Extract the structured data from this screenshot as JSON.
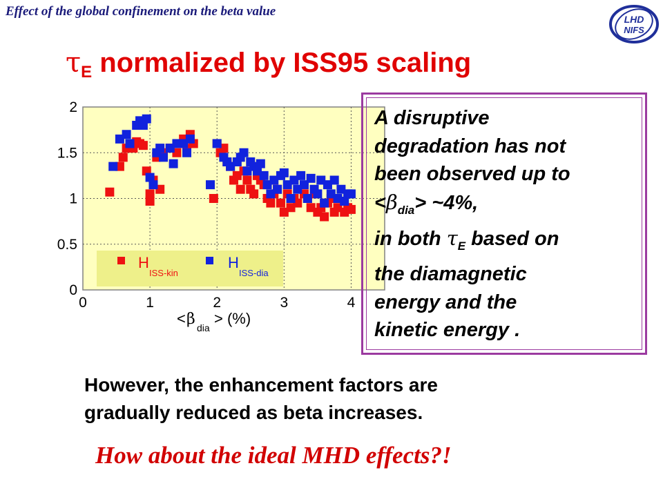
{
  "header": {
    "title": "Effect of the global confinement on the beta value"
  },
  "logo": {
    "text_top": "LHD",
    "text_bottom": "NIFS",
    "color": "#1f2f9a"
  },
  "slide_title": {
    "tau": "τ",
    "sub": "E",
    "rest": " normalized by ISS95 scaling"
  },
  "textbox": {
    "line1": "A disruptive",
    "line2": "degradation has not",
    "line3": "been observed up to",
    "l4_lt": "<",
    "l4_beta": "β",
    "l4_sub": "dia",
    "l4_rest": "> ~4%,",
    "l5_a": "in both ",
    "l5_tau": "τ",
    "l5_sub": "E",
    "l5_rest": " based on",
    "line6": "the diamagnetic",
    "line7": "energy and the",
    "line8": "kinetic energy ."
  },
  "body": {
    "line1": "However, the enhancement factors are",
    "line2": "gradually reduced as beta increases."
  },
  "question": "How about the ideal MHD effects?!",
  "colors": {
    "red": "#ee1111",
    "blue": "#1122dd",
    "plot_bg": "#ffffc0",
    "legend_bg": "#eef08a"
  },
  "chart_data": {
    "type": "scatter",
    "xlabel_pre": "<",
    "xlabel_beta": "β",
    "xlabel_sub": "dia",
    "xlabel_post": "> (%)",
    "xlim": [
      0,
      4.5
    ],
    "ylim": [
      0,
      2
    ],
    "xticks": [
      "0",
      "1",
      "2",
      "3",
      "4"
    ],
    "yticks": [
      "0",
      "0.5",
      "1",
      "1.5",
      "2"
    ],
    "grid": "dotted",
    "legend": {
      "red_main": "H",
      "red_sub": "ISS-kin",
      "blue_main": "H",
      "blue_sub": "ISS-dia",
      "placement": "bottom-left"
    },
    "series": [
      {
        "color": "red",
        "points": [
          [
            0.4,
            1.07
          ],
          [
            0.55,
            1.35
          ],
          [
            0.6,
            1.45
          ],
          [
            0.65,
            1.55
          ],
          [
            0.7,
            1.6
          ],
          [
            0.75,
            1.55
          ],
          [
            0.8,
            1.62
          ],
          [
            0.85,
            1.6
          ],
          [
            0.9,
            1.58
          ],
          [
            0.95,
            1.3
          ],
          [
            1.0,
            0.97
          ],
          [
            1.0,
            1.05
          ],
          [
            1.05,
            1.2
          ],
          [
            1.1,
            1.45
          ],
          [
            1.15,
            1.1
          ],
          [
            1.2,
            1.5
          ],
          [
            1.3,
            1.55
          ],
          [
            1.4,
            1.5
          ],
          [
            1.5,
            1.65
          ],
          [
            1.55,
            1.55
          ],
          [
            1.6,
            1.7
          ],
          [
            1.65,
            1.6
          ],
          [
            1.95,
            1.0
          ],
          [
            2.0,
            1.6
          ],
          [
            2.05,
            1.5
          ],
          [
            2.1,
            1.55
          ],
          [
            2.15,
            1.4
          ],
          [
            2.2,
            1.35
          ],
          [
            2.25,
            1.2
          ],
          [
            2.3,
            1.25
          ],
          [
            2.35,
            1.1
          ],
          [
            2.4,
            1.3
          ],
          [
            2.45,
            1.2
          ],
          [
            2.5,
            1.1
          ],
          [
            2.55,
            1.05
          ],
          [
            2.6,
            1.25
          ],
          [
            2.65,
            1.2
          ],
          [
            2.7,
            1.15
          ],
          [
            2.75,
            1.0
          ],
          [
            2.8,
            0.95
          ],
          [
            2.85,
            1.05
          ],
          [
            2.9,
            1.1
          ],
          [
            2.95,
            0.95
          ],
          [
            3.0,
            0.85
          ],
          [
            3.05,
            1.05
          ],
          [
            3.1,
            0.9
          ],
          [
            3.15,
            1.0
          ],
          [
            3.2,
            0.95
          ],
          [
            3.3,
            1.05
          ],
          [
            3.35,
            1.0
          ],
          [
            3.4,
            0.9
          ],
          [
            3.45,
            1.05
          ],
          [
            3.5,
            0.85
          ],
          [
            3.55,
            0.9
          ],
          [
            3.6,
            0.8
          ],
          [
            3.65,
            0.95
          ],
          [
            3.7,
            1.0
          ],
          [
            3.75,
            0.85
          ],
          [
            3.8,
            0.9
          ],
          [
            3.9,
            0.85
          ],
          [
            3.95,
            0.9
          ],
          [
            4.0,
            0.88
          ]
        ]
      },
      {
        "color": "blue",
        "points": [
          [
            0.45,
            1.35
          ],
          [
            0.55,
            1.65
          ],
          [
            0.65,
            1.7
          ],
          [
            0.7,
            1.6
          ],
          [
            0.8,
            1.8
          ],
          [
            0.85,
            1.85
          ],
          [
            0.9,
            1.8
          ],
          [
            0.95,
            1.87
          ],
          [
            1.0,
            1.23
          ],
          [
            1.05,
            1.15
          ],
          [
            1.1,
            1.5
          ],
          [
            1.15,
            1.55
          ],
          [
            1.2,
            1.45
          ],
          [
            1.3,
            1.55
          ],
          [
            1.35,
            1.38
          ],
          [
            1.4,
            1.6
          ],
          [
            1.5,
            1.6
          ],
          [
            1.55,
            1.5
          ],
          [
            1.6,
            1.65
          ],
          [
            1.9,
            1.15
          ],
          [
            2.0,
            1.6
          ],
          [
            2.1,
            1.45
          ],
          [
            2.15,
            1.4
          ],
          [
            2.2,
            1.35
          ],
          [
            2.3,
            1.4
          ],
          [
            2.35,
            1.45
          ],
          [
            2.4,
            1.5
          ],
          [
            2.45,
            1.3
          ],
          [
            2.5,
            1.4
          ],
          [
            2.55,
            1.35
          ],
          [
            2.6,
            1.3
          ],
          [
            2.65,
            1.38
          ],
          [
            2.7,
            1.25
          ],
          [
            2.75,
            1.15
          ],
          [
            2.8,
            1.05
          ],
          [
            2.85,
            1.2
          ],
          [
            2.9,
            1.1
          ],
          [
            2.95,
            1.25
          ],
          [
            3.0,
            1.28
          ],
          [
            3.05,
            1.15
          ],
          [
            3.1,
            1.0
          ],
          [
            3.15,
            1.2
          ],
          [
            3.2,
            1.1
          ],
          [
            3.25,
            1.25
          ],
          [
            3.3,
            1.15
          ],
          [
            3.35,
            1.0
          ],
          [
            3.4,
            1.22
          ],
          [
            3.45,
            1.1
          ],
          [
            3.5,
            1.05
          ],
          [
            3.55,
            1.2
          ],
          [
            3.6,
            0.95
          ],
          [
            3.65,
            1.15
          ],
          [
            3.7,
            1.05
          ],
          [
            3.75,
            1.2
          ],
          [
            3.8,
            1.0
          ],
          [
            3.85,
            1.1
          ],
          [
            3.9,
            0.97
          ],
          [
            3.95,
            1.05
          ],
          [
            4.0,
            1.05
          ]
        ]
      }
    ]
  }
}
